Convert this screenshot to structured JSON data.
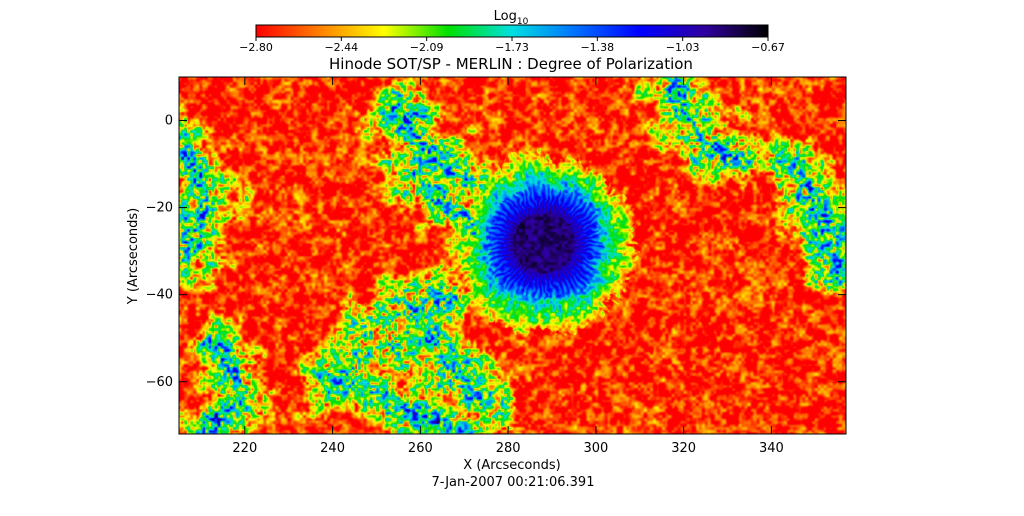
{
  "chart_data": {
    "type": "heatmap",
    "title": "Hinode SOT/SP - MERLIN : Degree of Polarization",
    "xlabel": "X (Arcseconds)",
    "ylabel": "Y (Arcseconds)",
    "xlim": [
      205,
      357
    ],
    "ylim": [
      -72,
      10
    ],
    "xticks": [
      220,
      240,
      260,
      280,
      300,
      320,
      340
    ],
    "yticks": [
      0,
      -20,
      -40,
      -60
    ],
    "colorbar": {
      "label_base": "Log",
      "label_sub": "10",
      "min": -2.8,
      "max": -0.67,
      "tick_labels": [
        "-2.80",
        "-2.44",
        "-2.09",
        "-1.73",
        "-1.38",
        "-1.03",
        "-0.67"
      ],
      "colors": [
        "#ff0000",
        "#ff8000",
        "#ffff00",
        "#00e000",
        "#00e0e0",
        "#0070ff",
        "#0000ff",
        "#3000a0",
        "#000000"
      ]
    },
    "features": {
      "spot_center": [
        288,
        -28
      ],
      "umbra_radius": 7,
      "penumbra_radius": 13,
      "level_umbra": -0.8,
      "level_quiet": -2.7
    },
    "timestamp": "7-Jan-2007 00:21:06.391"
  }
}
